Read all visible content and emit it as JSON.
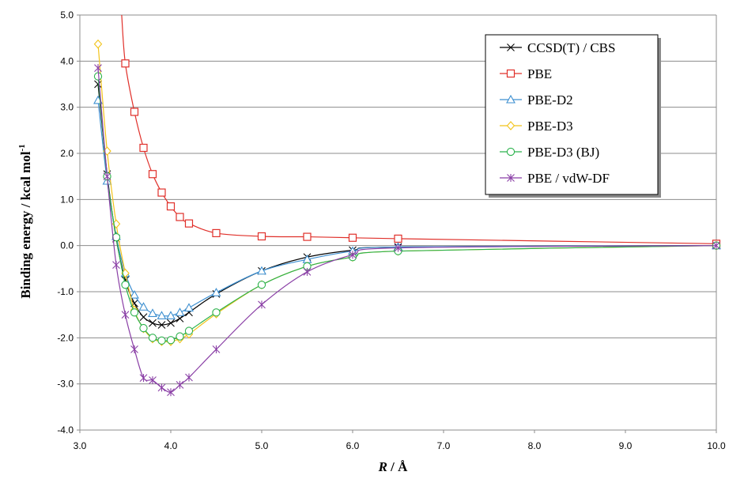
{
  "chart_data": {
    "type": "line",
    "xlabel_italic": "R",
    "xlabel_rest": " / Å",
    "ylabel_main": "Binding energy / kcal mol",
    "ylabel_sup": "-1",
    "xlim": [
      3.0,
      10.0
    ],
    "ylim": [
      -4.0,
      5.0
    ],
    "x_ticks": [
      "3.0",
      "4.0",
      "5.0",
      "6.0",
      "7.0",
      "8.0",
      "9.0",
      "10.0"
    ],
    "y_ticks": [
      "5.0",
      "4.0",
      "3.0",
      "2.0",
      "1.0",
      "0.0",
      "-1.0",
      "-2.0",
      "-3.0",
      "-4.0"
    ],
    "grid": "horizontal",
    "legend_position": "top-right",
    "series": [
      {
        "name": "CCSD(T) / CBS",
        "color": "#000000",
        "marker": "x",
        "x": [
          3.2,
          3.3,
          3.4,
          3.5,
          3.6,
          3.7,
          3.8,
          3.9,
          4.0,
          4.1,
          4.2,
          4.5,
          5.0,
          5.5,
          6.0,
          6.5,
          10.0
        ],
        "y": [
          3.5,
          1.55,
          0.15,
          -0.75,
          -1.25,
          -1.55,
          -1.68,
          -1.72,
          -1.68,
          -1.58,
          -1.45,
          -1.05,
          -0.55,
          -0.25,
          -0.1,
          -0.03,
          0.0
        ]
      },
      {
        "name": "PBE",
        "color": "#e0302a",
        "marker": "square",
        "x": [
          3.5,
          3.6,
          3.7,
          3.8,
          3.9,
          4.0,
          4.1,
          4.2,
          4.5,
          5.0,
          5.5,
          6.0,
          6.5,
          10.0
        ],
        "y": [
          3.95,
          2.9,
          2.12,
          1.55,
          1.15,
          0.85,
          0.62,
          0.48,
          0.27,
          0.2,
          0.19,
          0.17,
          0.15,
          0.04
        ],
        "lead_in": {
          "x": [
            3.46
          ],
          "y": [
            5.0
          ]
        }
      },
      {
        "name": "PBE-D2",
        "color": "#3d8fd0",
        "marker": "triangle",
        "x": [
          3.2,
          3.3,
          3.4,
          3.5,
          3.6,
          3.7,
          3.8,
          3.9,
          4.0,
          4.1,
          4.2,
          4.5,
          5.0,
          5.5,
          6.0,
          6.5,
          10.0
        ],
        "y": [
          3.15,
          1.4,
          0.2,
          -0.6,
          -1.07,
          -1.33,
          -1.47,
          -1.52,
          -1.52,
          -1.45,
          -1.35,
          -1.02,
          -0.55,
          -0.3,
          -0.12,
          -0.03,
          0.0
        ]
      },
      {
        "name": "PBE-D3",
        "color": "#f2c31a",
        "marker": "diamond",
        "x": [
          3.2,
          3.3,
          3.4,
          3.5,
          3.6,
          3.7,
          3.8,
          3.9,
          4.0,
          4.1,
          4.2,
          4.5,
          5.0,
          5.5,
          6.0,
          6.5,
          10.0
        ],
        "y": [
          4.37,
          2.05,
          0.47,
          -0.6,
          -1.4,
          -1.8,
          -2.02,
          -2.08,
          -2.08,
          -2.02,
          -1.92,
          -1.48,
          -0.85,
          -0.45,
          -0.25,
          -0.12,
          0.0
        ]
      },
      {
        "name": "PBE-D3 (BJ)",
        "color": "#2bb24c",
        "marker": "circle",
        "x": [
          3.2,
          3.3,
          3.4,
          3.5,
          3.6,
          3.7,
          3.8,
          3.9,
          4.0,
          4.1,
          4.2,
          4.5,
          5.0,
          5.5,
          6.0,
          6.5,
          10.0
        ],
        "y": [
          3.67,
          1.5,
          0.18,
          -0.85,
          -1.45,
          -1.79,
          -2.0,
          -2.06,
          -2.05,
          -1.97,
          -1.85,
          -1.45,
          -0.85,
          -0.45,
          -0.25,
          -0.12,
          0.0
        ]
      },
      {
        "name": "PBE / vdW-DF",
        "color": "#8a3fa6",
        "marker": "star",
        "x": [
          3.2,
          3.3,
          3.4,
          3.5,
          3.6,
          3.7,
          3.8,
          3.9,
          4.0,
          4.1,
          4.2,
          4.5,
          5.0,
          5.5,
          6.0,
          6.5,
          10.0
        ],
        "y": [
          3.85,
          1.5,
          -0.42,
          -1.5,
          -2.25,
          -2.87,
          -2.92,
          -3.08,
          -3.18,
          -3.02,
          -2.86,
          -2.25,
          -1.28,
          -0.57,
          -0.2,
          -0.05,
          0.0
        ]
      }
    ]
  }
}
